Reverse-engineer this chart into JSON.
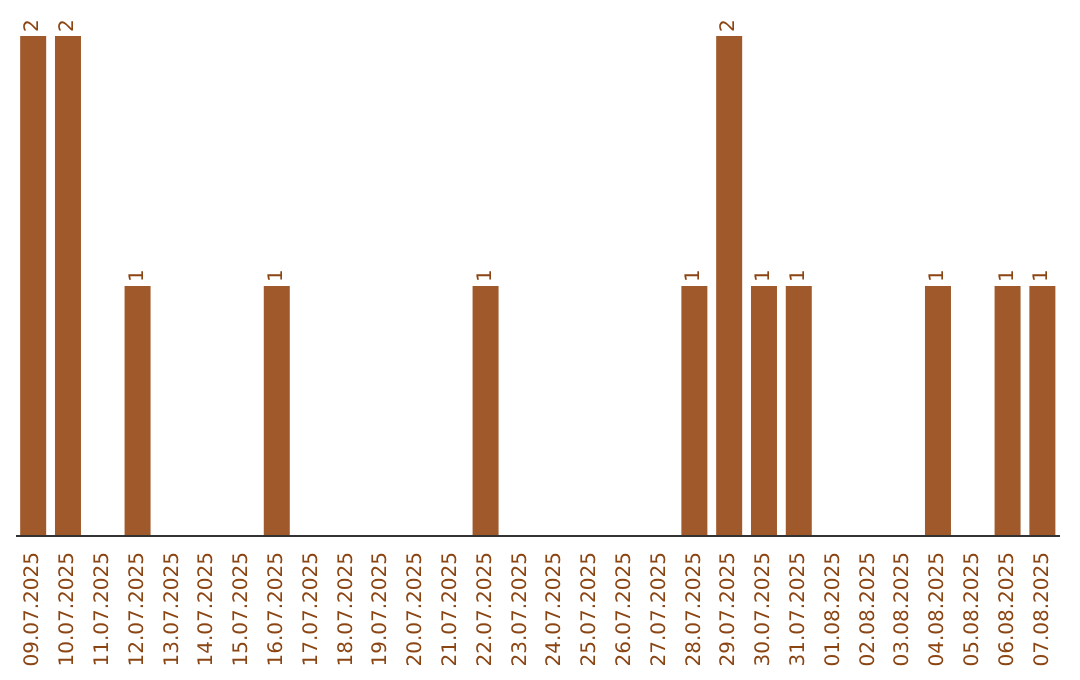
{
  "chart_data": {
    "type": "bar",
    "categories": [
      "09.07.2025",
      "10.07.2025",
      "11.07.2025",
      "12.07.2025",
      "13.07.2025",
      "14.07.2025",
      "15.07.2025",
      "16.07.2025",
      "17.07.2025",
      "18.07.2025",
      "19.07.2025",
      "20.07.2025",
      "21.07.2025",
      "22.07.2025",
      "23.07.2025",
      "24.07.2025",
      "25.07.2025",
      "26.07.2025",
      "27.07.2025",
      "28.07.2025",
      "29.07.2025",
      "30.07.2025",
      "31.07.2025",
      "01.08.2025",
      "02.08.2025",
      "03.08.2025",
      "04.08.2025",
      "05.08.2025",
      "06.08.2025",
      "07.08.2025"
    ],
    "values": [
      2,
      2,
      0,
      1,
      0,
      0,
      0,
      1,
      0,
      0,
      0,
      0,
      0,
      1,
      0,
      0,
      0,
      0,
      0,
      1,
      2,
      1,
      1,
      0,
      0,
      0,
      1,
      0,
      1,
      1
    ],
    "value_labels": [
      "2",
      "2",
      null,
      "1",
      null,
      null,
      null,
      "1",
      null,
      null,
      null,
      null,
      null,
      "1",
      null,
      null,
      null,
      null,
      null,
      "1",
      "2",
      "1",
      "1",
      null,
      null,
      null,
      "1",
      null,
      "1",
      "1"
    ],
    "color": "#a0592a",
    "grid": false,
    "legend": false
  }
}
